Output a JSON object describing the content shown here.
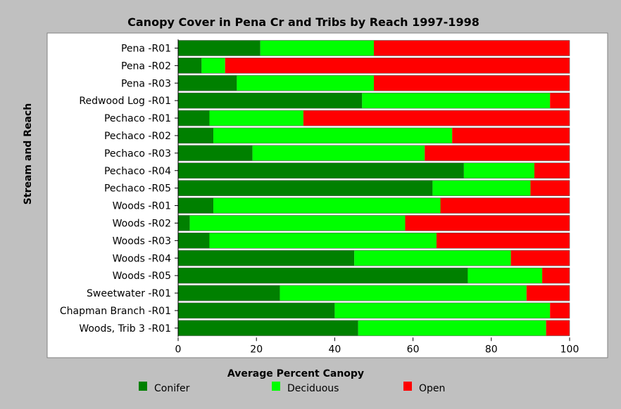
{
  "chart_data": {
    "type": "bar",
    "orientation": "horizontal",
    "stacked": true,
    "title": "Canopy Cover in Pena Cr and Tribs by Reach 1997-1998",
    "xlabel": "Average Percent Canopy",
    "ylabel": "Stream and Reach",
    "xlim": [
      0,
      100
    ],
    "xticks": [
      0,
      20,
      40,
      60,
      80,
      100
    ],
    "grid": false,
    "legend": "bottom",
    "categories": [
      "Pena -R01",
      "Pena -R02",
      "Pena -R03",
      "Redwood Log -R01",
      "Pechaco -R01",
      "Pechaco -R02",
      "Pechaco -R03",
      "Pechaco -R04",
      "Pechaco -R05",
      "Woods -R01",
      "Woods -R02",
      "Woods -R03",
      "Woods -R04",
      "Woods -R05",
      "Sweetwater -R01",
      "Chapman Branch -R01",
      "Woods, Trib 3 -R01"
    ],
    "series": [
      {
        "name": "Conifer",
        "color": "#008000",
        "values": [
          21,
          6,
          15,
          47,
          8,
          9,
          19,
          73,
          65,
          9,
          3,
          8,
          45,
          74,
          26,
          40,
          46
        ]
      },
      {
        "name": "Deciduous",
        "color": "#00ff00",
        "values": [
          29,
          6,
          35,
          48,
          24,
          61,
          44,
          18,
          25,
          58,
          55,
          58,
          40,
          19,
          63,
          55,
          48
        ]
      },
      {
        "name": "Open",
        "color": "#ff0000",
        "values": [
          50,
          88,
          50,
          5,
          68,
          30,
          37,
          9,
          10,
          33,
          42,
          34,
          15,
          7,
          11,
          5,
          6
        ]
      }
    ]
  }
}
